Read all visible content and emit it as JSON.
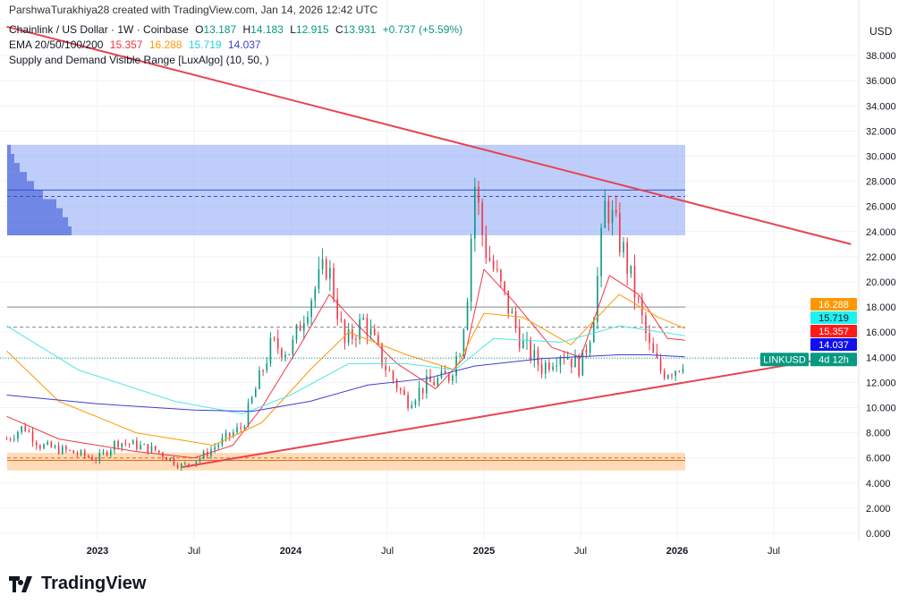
{
  "header": {
    "credit": "ParshwaTurakhiya28 created with TradingView.com, Jan 14, 2026 12:42 UTC",
    "symbol": "Chainlink / US Dollar · 1W · Coinbase",
    "o_label": "O",
    "o": "13.187",
    "h_label": "H",
    "h": "14.183",
    "l_label": "L",
    "l": "12.915",
    "c_label": "C",
    "c": "13.931",
    "change": "+0.737 (+5.59%)",
    "ema_label": "EMA 20/50/100/200",
    "ema20": "15.357",
    "ema50": "16.288",
    "ema100": "15.719",
    "ema200": "14.037",
    "indicator": "Supply and Demand Visible Range [LuxAlgo] (10, 50, )"
  },
  "currency": "USD",
  "logo": "TradingView",
  "colors": {
    "up": "#089981",
    "down": "#f23645",
    "ema20": "#f23645",
    "ema50": "#ff9800",
    "ema100": "#4ee6e6",
    "ema200": "#3f3fcf",
    "trend": "#e84352",
    "supply": "#8aa4f5",
    "demand": "#ffcc99"
  },
  "chart_data": {
    "type": "candlestick",
    "y_ticks": [
      "0.000",
      "2.000",
      "4.000",
      "6.000",
      "8.000",
      "10.000",
      "12.000",
      "14.000",
      "16.000",
      "18.000",
      "20.000",
      "22.000",
      "24.000",
      "26.000",
      "28.000",
      "30.000",
      "32.000",
      "34.000",
      "36.000",
      "38.000"
    ],
    "ylim": [
      0,
      38
    ],
    "x_ticks": [
      {
        "label": "2023",
        "t": 2023.0
      },
      {
        "label": "Jul",
        "t": 2023.5
      },
      {
        "label": "2024",
        "t": 2024.0
      },
      {
        "label": "Jul",
        "t": 2024.5
      },
      {
        "label": "2025",
        "t": 2025.0
      },
      {
        "label": "Jul",
        "t": 2025.5
      },
      {
        "label": "2026",
        "t": 2026.0
      },
      {
        "label": "Jul",
        "t": 2026.5
      }
    ],
    "price_path": [
      [
        2022.53,
        7.5
      ],
      [
        2022.62,
        8.5
      ],
      [
        2022.7,
        7.0
      ],
      [
        2022.85,
        6.5
      ],
      [
        2023.0,
        5.9
      ],
      [
        2023.1,
        7.3
      ],
      [
        2023.2,
        7.0
      ],
      [
        2023.3,
        6.6
      ],
      [
        2023.44,
        5.3
      ],
      [
        2023.55,
        6.2
      ],
      [
        2023.65,
        7.4
      ],
      [
        2023.75,
        8.5
      ],
      [
        2023.82,
        11.5
      ],
      [
        2023.9,
        15
      ],
      [
        2024.0,
        14.5
      ],
      [
        2024.08,
        18
      ],
      [
        2024.19,
        21.5
      ],
      [
        2024.28,
        15
      ],
      [
        2024.38,
        17
      ],
      [
        2024.48,
        13.5
      ],
      [
        2024.6,
        10.5
      ],
      [
        2024.7,
        11.8
      ],
      [
        2024.82,
        12.5
      ],
      [
        2024.88,
        15
      ],
      [
        2024.92,
        20
      ],
      [
        2024.95,
        28
      ],
      [
        2025.0,
        23
      ],
      [
        2025.1,
        19
      ],
      [
        2025.2,
        15
      ],
      [
        2025.3,
        13.2
      ],
      [
        2025.4,
        14.5
      ],
      [
        2025.5,
        13.2
      ],
      [
        2025.56,
        16.5
      ],
      [
        2025.6,
        22
      ],
      [
        2025.63,
        26.5
      ],
      [
        2025.72,
        22.5
      ],
      [
        2025.8,
        18
      ],
      [
        2025.86,
        14.5
      ],
      [
        2025.92,
        12.8
      ],
      [
        2026.0,
        13.2
      ],
      [
        2026.04,
        13.93
      ]
    ],
    "ema20": [
      [
        2022.53,
        9.3
      ],
      [
        2022.8,
        7.5
      ],
      [
        2023.2,
        6.5
      ],
      [
        2023.5,
        6.0
      ],
      [
        2023.7,
        7.0
      ],
      [
        2023.85,
        10
      ],
      [
        2024.05,
        15
      ],
      [
        2024.2,
        19
      ],
      [
        2024.35,
        16.5
      ],
      [
        2024.55,
        13.5
      ],
      [
        2024.75,
        11.5
      ],
      [
        2024.9,
        14
      ],
      [
        2025.0,
        21
      ],
      [
        2025.15,
        18.5
      ],
      [
        2025.35,
        14.8
      ],
      [
        2025.5,
        14
      ],
      [
        2025.65,
        20.5
      ],
      [
        2025.8,
        19
      ],
      [
        2025.95,
        15.5
      ],
      [
        2026.04,
        15.36
      ]
    ],
    "ema50": [
      [
        2022.53,
        14.5
      ],
      [
        2022.8,
        10.5
      ],
      [
        2023.2,
        8.0
      ],
      [
        2023.6,
        7.0
      ],
      [
        2023.85,
        8.8
      ],
      [
        2024.1,
        13
      ],
      [
        2024.3,
        16
      ],
      [
        2024.6,
        14.2
      ],
      [
        2024.85,
        13
      ],
      [
        2025.0,
        17.5
      ],
      [
        2025.2,
        17.2
      ],
      [
        2025.45,
        15
      ],
      [
        2025.7,
        19
      ],
      [
        2025.9,
        17.2
      ],
      [
        2026.04,
        16.29
      ]
    ],
    "ema100": [
      [
        2022.53,
        16.5
      ],
      [
        2022.9,
        13
      ],
      [
        2023.4,
        10.5
      ],
      [
        2023.75,
        9.5
      ],
      [
        2024.0,
        11
      ],
      [
        2024.3,
        13.5
      ],
      [
        2024.6,
        13.5
      ],
      [
        2024.85,
        13
      ],
      [
        2025.05,
        15.5
      ],
      [
        2025.4,
        15.2
      ],
      [
        2025.7,
        16.5
      ],
      [
        2026.04,
        15.72
      ]
    ],
    "ema200": [
      [
        2022.53,
        11
      ],
      [
        2023.0,
        10.3
      ],
      [
        2023.5,
        9.8
      ],
      [
        2023.8,
        9.7
      ],
      [
        2024.1,
        10.5
      ],
      [
        2024.4,
        11.8
      ],
      [
        2024.7,
        12.3
      ],
      [
        2024.95,
        13.3
      ],
      [
        2025.3,
        13.9
      ],
      [
        2025.7,
        14.2
      ],
      [
        2025.85,
        14.2
      ],
      [
        2026.04,
        14.04
      ]
    ],
    "supply_zone": [
      23.7,
      30.9
    ],
    "supply_line": 27.3,
    "supply_dashed": 26.8,
    "demand_zone": [
      5.0,
      6.4
    ],
    "demand_line": 5.8,
    "demand_dashed": 6.0,
    "gray_line": 18.0,
    "gray_dashed": 16.4,
    "down_trend": [
      [
        2022.53,
        40.3
      ],
      [
        2026.9,
        23.0
      ]
    ],
    "up_trend": [
      [
        2023.44,
        5.27
      ],
      [
        2026.9,
        14.23
      ]
    ],
    "labels": {
      "ema50": "16.288",
      "ema100": "15.719",
      "ema20": "15.357",
      "ema200": "14.037",
      "symbol": "LINKUSD",
      "countdown": "4d 12h"
    },
    "last_price": 13.93
  }
}
